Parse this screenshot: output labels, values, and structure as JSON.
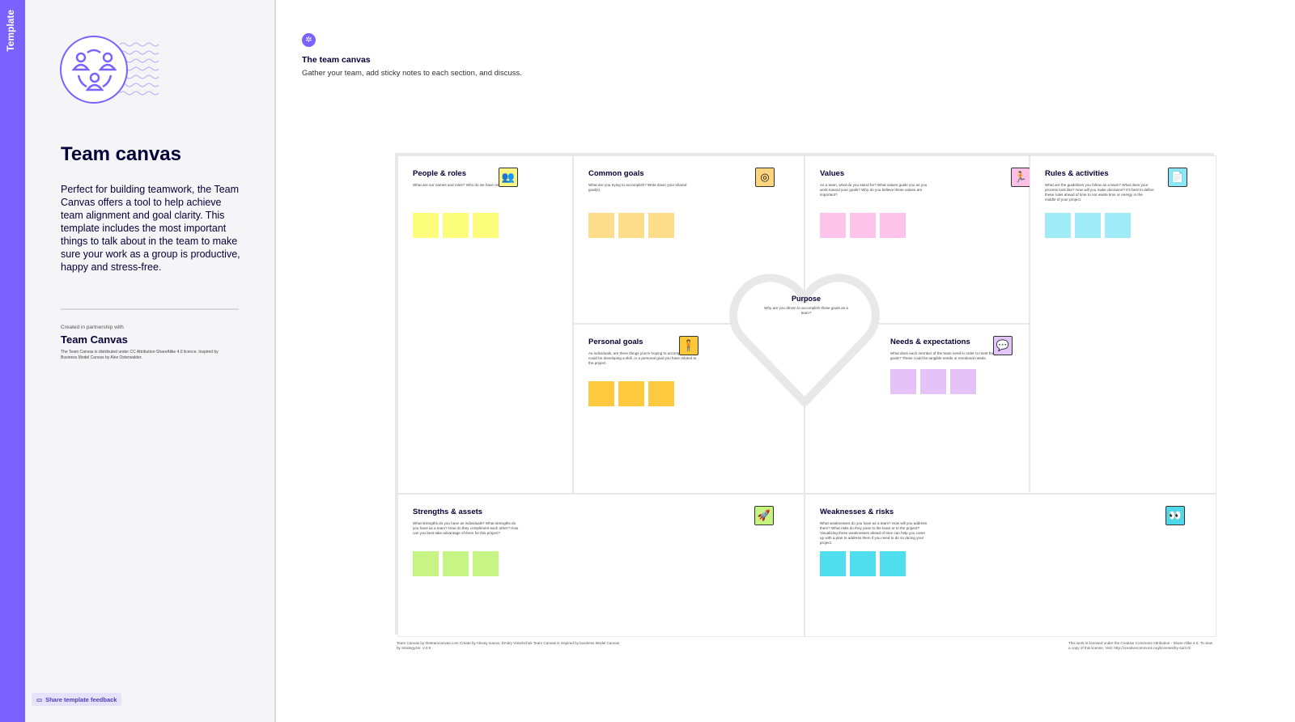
{
  "sidebar": {
    "tab": "Template",
    "title": "Team canvas",
    "description": "Perfect for building teamwork, the Team Canvas offers a tool to help achieve team alignment and goal clarity. This template includes the most important things to talk about in the team to make sure your work as a group is productive, happy and stress-free.",
    "partner_label": "Created in partnership with",
    "partner_name": "Team Canvas",
    "license": "The Team Canvas is distributed under CC Attribution-ShareAlike 4.0 licence. Inspired by Business Model Canvas by Alex Osterwalder.",
    "feedback": "Share template feedback",
    "accent": "#7b61ff"
  },
  "header": {
    "title": "The team canvas",
    "subtitle": "Gather your team, add sticky notes to each section, and discuss."
  },
  "sections": [
    {
      "title": "People & roles",
      "desc": "What are our names and roles? Who do we have on the team?",
      "icon": "people-icon",
      "color": "#fdf582",
      "note": "#fdfd7c"
    },
    {
      "title": "Common goals",
      "desc": "What are you trying to accomplish? Write down your shared goal(s).",
      "icon": "target-icon",
      "color": "#fdd57e",
      "note": "#fddc8a"
    },
    {
      "title": "Values",
      "desc": "As a team, what do you stand for? What values guide you as you work toward your goals? Why do you believe these values are important?",
      "icon": "person-star-icon",
      "color": "#fcc0e6",
      "note": "#fdc3ea"
    },
    {
      "title": "Rules & activities",
      "desc": "What are the guidelines you follow as a team? What does your process look like? How will you make decisions? It's best to define these rules ahead of time to not waste time or energy in the middle of your project.",
      "icon": "document-icon",
      "color": "#8be6f5",
      "note": "#a0ebf8"
    },
    {
      "title": "Personal goals",
      "desc": "As individuals, are there things you're hoping to accomplish? This could be developing a skill, or a personal goal you have related to the project.",
      "icon": "person-thought-icon",
      "color": "#fcc73a",
      "note": "#fcc93f"
    },
    {
      "title": "Needs & expectations",
      "desc": "What does each member of the team need in order to meet their goals? These could be tangible needs or emotional needs.",
      "icon": "speech-bubbles-icon",
      "color": "#e2c6fa",
      "note": "#e5c2f8"
    },
    {
      "title": "Strengths & assets",
      "desc": "What strengths do you have as individuals? What strengths do you have as a team? How do they compliment each other? How can you best take advantage of them for this project?",
      "icon": "rocket-icon",
      "color": "#c6f37e",
      "note": "#c6f585"
    },
    {
      "title": "Weaknesses & risks",
      "desc": "What weaknesses do you have as a team? How will you address them? What risks do they pose to the team or to the project? Visualizing these weaknesses ahead of time can help you come up with a plan to address them if you need to do so during your project.",
      "icon": "eyes-icon",
      "color": "#4ed9ea",
      "note": "#4fdeed"
    }
  ],
  "purpose": {
    "title": "Purpose",
    "desc": "Why are you driven to accomplish these goals as a team?"
  },
  "footer": {
    "left": "Team Canvas by theteamcanvas.com Create by Alexey Ivanov, Dmitry Voloshchuk Team Canvas is inspired by business Model Canvas by Strategyzer. V.0.9",
    "right": "This work is licensed under the Creative Commons Attribution - Share Alike 4.0. To view a copy of this license, Visit: http://creativecommons.org/licenses/by-sa/4.0/"
  }
}
